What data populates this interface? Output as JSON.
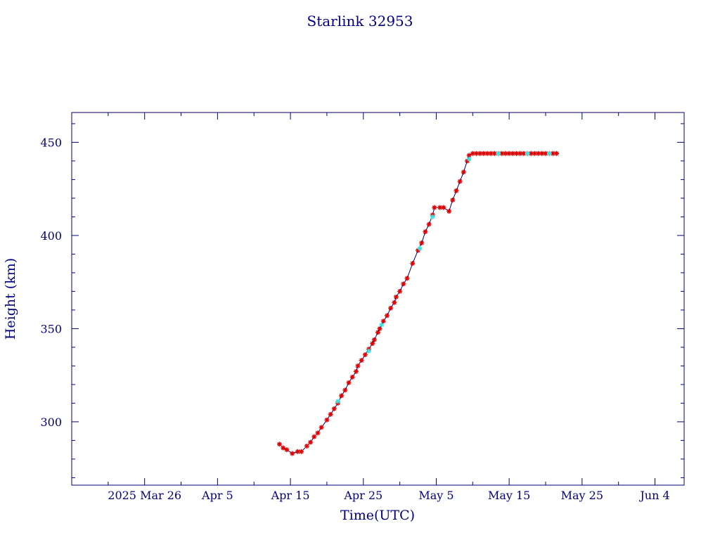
{
  "chart_data": {
    "type": "scatter",
    "title": "Starlink 32953",
    "xlabel": "Time(UTC)",
    "ylabel": "Height (km)",
    "xlim": [
      "2025-03-16",
      "2025-06-08"
    ],
    "ylim": [
      266,
      466
    ],
    "x_tick_labels": [
      {
        "date": "2025-03-26",
        "label": "2025 Mar 26"
      },
      {
        "date": "2025-04-05",
        "label": "Apr  5"
      },
      {
        "date": "2025-04-15",
        "label": "Apr 15"
      },
      {
        "date": "2025-04-25",
        "label": "Apr 25"
      },
      {
        "date": "2025-05-05",
        "label": "May  5"
      },
      {
        "date": "2025-05-15",
        "label": "May 15"
      },
      {
        "date": "2025-05-25",
        "label": "May 25"
      },
      {
        "date": "2025-06-04",
        "label": "Jun  4"
      }
    ],
    "y_ticks": [
      300,
      350,
      400,
      450
    ],
    "grid": false,
    "colors": {
      "axes": "#000080",
      "line": "#000080",
      "marker": "#e00000",
      "highlight_marker": "#40e0e0"
    },
    "series": [
      {
        "values": [
          [
            "2025-04-13T12:00",
            288
          ],
          [
            "2025-04-14T00:00",
            286
          ],
          [
            "2025-04-14T12:00",
            285
          ],
          [
            "2025-04-15T06:00",
            283
          ],
          [
            "2025-04-16T00:00",
            284
          ],
          [
            "2025-04-16T12:00",
            284
          ],
          [
            "2025-04-17T06:00",
            287
          ],
          [
            "2025-04-17T18:00",
            289
          ],
          [
            "2025-04-18T06:00",
            292
          ],
          [
            "2025-04-18T18:00",
            294
          ],
          [
            "2025-04-19T06:00",
            297
          ],
          [
            "2025-04-20T00:00",
            301
          ],
          [
            "2025-04-20T12:00",
            304
          ],
          [
            "2025-04-21T00:00",
            307
          ],
          [
            "2025-04-21T12:00",
            310
          ],
          [
            "2025-04-22T00:00",
            314
          ],
          [
            "2025-04-22T12:00",
            317
          ],
          [
            "2025-04-23T00:00",
            321
          ],
          [
            "2025-04-23T12:00",
            324
          ],
          [
            "2025-04-24T00:00",
            327
          ],
          [
            "2025-04-24T06:00",
            330
          ],
          [
            "2025-04-24T18:00",
            333
          ],
          [
            "2025-04-25T06:00",
            336
          ],
          [
            "2025-04-25T18:00",
            339
          ],
          [
            "2025-04-26T06:00",
            342
          ],
          [
            "2025-04-26T12:00",
            344
          ],
          [
            "2025-04-27T00:00",
            348
          ],
          [
            "2025-04-27T06:00",
            350
          ],
          [
            "2025-04-27T18:00",
            354
          ],
          [
            "2025-04-28T06:00",
            357
          ],
          [
            "2025-04-28T18:00",
            361
          ],
          [
            "2025-04-29T06:00",
            364
          ],
          [
            "2025-04-29T12:00",
            367
          ],
          [
            "2025-04-30T00:00",
            370
          ],
          [
            "2025-04-30T12:00",
            374
          ],
          [
            "2025-05-01T00:00",
            377
          ],
          [
            "2025-05-01T18:00",
            385
          ],
          [
            "2025-05-02T12:00",
            392
          ],
          [
            "2025-05-03T00:00",
            396
          ],
          [
            "2025-05-03T12:00",
            402
          ],
          [
            "2025-05-04T00:00",
            406
          ],
          [
            "2025-05-04T12:00",
            411
          ],
          [
            "2025-05-04T18:00",
            415
          ],
          [
            "2025-05-05T12:00",
            415
          ],
          [
            "2025-05-06T00:00",
            415
          ],
          [
            "2025-05-06T18:00",
            413
          ],
          [
            "2025-05-07T06:00",
            419
          ],
          [
            "2025-05-07T18:00",
            424
          ],
          [
            "2025-05-08T06:00",
            429
          ],
          [
            "2025-05-08T18:00",
            434
          ],
          [
            "2025-05-09T06:00",
            440
          ],
          [
            "2025-05-09T12:00",
            443
          ],
          [
            "2025-05-10T00:00",
            444
          ],
          [
            "2025-05-10T12:00",
            444
          ],
          [
            "2025-05-11T00:00",
            444
          ],
          [
            "2025-05-11T12:00",
            444
          ],
          [
            "2025-05-12T00:00",
            444
          ],
          [
            "2025-05-12T12:00",
            444
          ],
          [
            "2025-05-13T00:00",
            444
          ],
          [
            "2025-05-13T12:00",
            444
          ],
          [
            "2025-05-14T00:00",
            444
          ],
          [
            "2025-05-14T12:00",
            444
          ],
          [
            "2025-05-15T00:00",
            444
          ],
          [
            "2025-05-15T12:00",
            444
          ],
          [
            "2025-05-16T00:00",
            444
          ],
          [
            "2025-05-16T12:00",
            444
          ],
          [
            "2025-05-17T00:00",
            444
          ],
          [
            "2025-05-17T12:00",
            444
          ],
          [
            "2025-05-18T00:00",
            444
          ],
          [
            "2025-05-18T12:00",
            444
          ],
          [
            "2025-05-19T00:00",
            444
          ],
          [
            "2025-05-19T12:00",
            444
          ],
          [
            "2025-05-20T00:00",
            444
          ],
          [
            "2025-05-20T12:00",
            444
          ],
          [
            "2025-05-21T00:00",
            444
          ],
          [
            "2025-05-21T12:00",
            444
          ]
        ]
      },
      {
        "values": [
          [
            "2025-04-21T12:00",
            311
          ],
          [
            "2025-04-25T18:00",
            338
          ],
          [
            "2025-04-27T12:00",
            352
          ],
          [
            "2025-05-02T18:00",
            393
          ],
          [
            "2025-05-04T12:00",
            410
          ],
          [
            "2025-05-09T12:00",
            441
          ],
          [
            "2025-05-13T12:00",
            444
          ],
          [
            "2025-05-17T12:00",
            444
          ],
          [
            "2025-05-20T12:00",
            444
          ]
        ]
      }
    ]
  }
}
